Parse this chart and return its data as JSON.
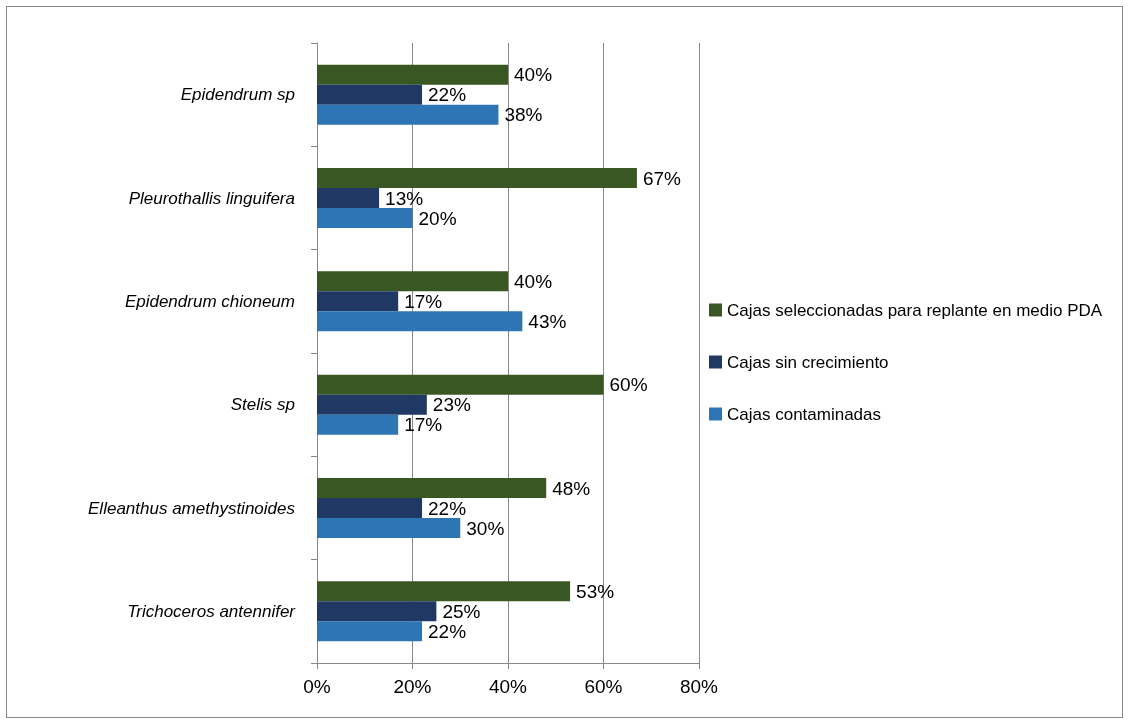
{
  "chart_data": {
    "type": "bar",
    "orientation": "horizontal",
    "categories": [
      "Epidendrum sp",
      "Pleurothallis linguifera",
      "Epidendrum chioneum",
      "Stelis sp",
      "Elleanthus amethystinoides",
      "Trichoceros antennifer"
    ],
    "series": [
      {
        "name": "Cajas seleccionadas para replante en medio PDA",
        "color": "#385723",
        "values": [
          40,
          67,
          40,
          60,
          48,
          53
        ],
        "value_labels": [
          "40%",
          "67%",
          "40%",
          "60%",
          "48%",
          "53%"
        ]
      },
      {
        "name": "Cajas sin crecimiento",
        "color": "#1f3864",
        "values": [
          22,
          13,
          17,
          23,
          22,
          25
        ],
        "value_labels": [
          "22%",
          "13%",
          "17%",
          "23%",
          "22%",
          "25%"
        ]
      },
      {
        "name": "Cajas contaminadas",
        "color": "#2e75b6",
        "values": [
          38,
          20,
          43,
          17,
          30,
          22
        ],
        "value_labels": [
          "38%",
          "20%",
          "43%",
          "17%",
          "30%",
          "22%"
        ]
      }
    ],
    "xlim": [
      0,
      80
    ],
    "xticks": [
      {
        "value": 0,
        "label": "0%"
      },
      {
        "value": 20,
        "label": "20%"
      },
      {
        "value": 40,
        "label": "40%"
      },
      {
        "value": 60,
        "label": "60%"
      },
      {
        "value": 80,
        "label": "80%"
      }
    ],
    "grid": "x",
    "legend": "right"
  }
}
